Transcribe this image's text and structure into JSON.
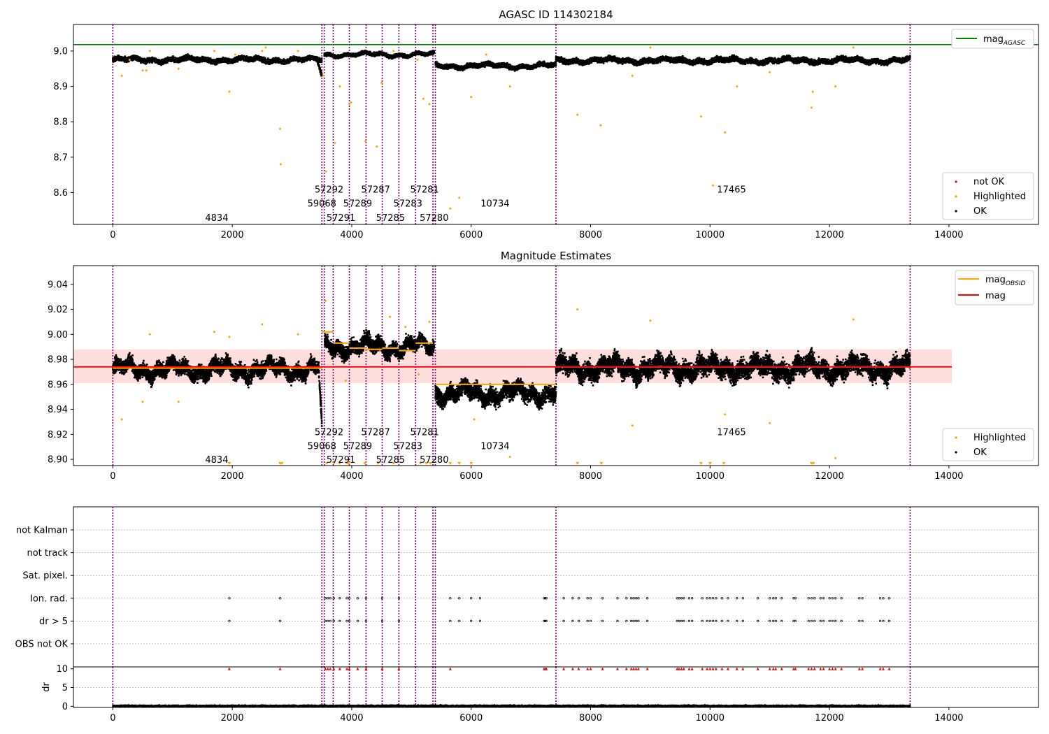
{
  "chart_data": [
    {
      "type": "scatter",
      "title": "AGASC ID 114302184",
      "xlim": [
        -660,
        15500
      ],
      "ylim": [
        8.51,
        9.075
      ],
      "x_ticks": [
        0,
        2000,
        4000,
        6000,
        8000,
        10000,
        12000,
        14000
      ],
      "y_ticks": [
        8.6,
        8.7,
        8.8,
        8.9,
        9.0
      ],
      "y_tick_labels": [
        "8.6",
        "8.7",
        "8.8",
        "8.9",
        "9.0"
      ],
      "grid": false,
      "legend_top": {
        "placement": "top-right",
        "entries": [
          {
            "name": "mag",
            "sub": "AGASC",
            "color": "#008000"
          }
        ]
      },
      "legend_bottom": {
        "placement": "bottom-right",
        "entries": [
          {
            "name": "not OK",
            "color": "#ff0000"
          },
          {
            "name": "Highlighted",
            "color": "#ffa500"
          },
          {
            "name": "OK",
            "color": "#000000"
          }
        ]
      },
      "reference_line": {
        "name": "mag AGASC",
        "y": 9.018,
        "color": "#008000"
      },
      "obsid_boundaries": [
        0,
        3500,
        3540,
        3690,
        3960,
        4240,
        4510,
        4790,
        5070,
        5360,
        5400,
        7420,
        13350
      ],
      "ok_segments": [
        {
          "x_start": 0,
          "x_end": 3500,
          "y": 8.975,
          "spread": 0.012
        },
        {
          "x_start": 3540,
          "x_end": 5380,
          "y": 8.99,
          "spread": 0.009
        },
        {
          "x_start": 5400,
          "x_end": 7420,
          "y": 8.958,
          "spread": 0.011
        },
        {
          "x_start": 7420,
          "x_end": 13350,
          "y": 8.973,
          "spread": 0.013
        }
      ],
      "dip": {
        "x_start": 3420,
        "x_end": 3500,
        "y_from": 8.975,
        "y_to": 8.93
      },
      "highlighted_points": [
        [
          150,
          8.93
        ],
        [
          280,
          8.975
        ],
        [
          500,
          8.945
        ],
        [
          560,
          8.945
        ],
        [
          620,
          9.0
        ],
        [
          1100,
          8.95
        ],
        [
          1700,
          9.0
        ],
        [
          1950,
          8.885
        ],
        [
          2050,
          8.99
        ],
        [
          2500,
          9.0
        ],
        [
          2560,
          9.01
        ],
        [
          2800,
          8.78
        ],
        [
          2810,
          8.68
        ],
        [
          3100,
          9.0
        ],
        [
          3530,
          8.93
        ],
        [
          3570,
          8.66
        ],
        [
          3720,
          8.74
        ],
        [
          3800,
          8.9
        ],
        [
          3960,
          8.85
        ],
        [
          3990,
          8.855
        ],
        [
          4230,
          8.745
        ],
        [
          4420,
          8.73
        ],
        [
          4500,
          8.91
        ],
        [
          4700,
          9.0
        ],
        [
          5100,
          8.975
        ],
        [
          5200,
          8.865
        ],
        [
          5300,
          8.85
        ],
        [
          5650,
          8.555
        ],
        [
          5800,
          8.585
        ],
        [
          6000,
          8.87
        ],
        [
          6250,
          8.99
        ],
        [
          6650,
          8.9
        ],
        [
          7780,
          8.82
        ],
        [
          8170,
          8.79
        ],
        [
          8700,
          8.93
        ],
        [
          9000,
          9.01
        ],
        [
          9850,
          8.815
        ],
        [
          10050,
          8.62
        ],
        [
          10250,
          8.77
        ],
        [
          10450,
          8.9
        ],
        [
          11000,
          8.94
        ],
        [
          11700,
          8.84
        ],
        [
          11720,
          8.885
        ],
        [
          12100,
          8.9
        ],
        [
          12400,
          9.01
        ]
      ],
      "obsid_labels": [
        {
          "text": "4834",
          "x": 1740,
          "y": 8.53
        },
        {
          "text": "57292",
          "x": 3620,
          "y": 8.61
        },
        {
          "text": "59068",
          "x": 3500,
          "y": 8.57
        },
        {
          "text": "57291",
          "x": 3820,
          "y": 8.53
        },
        {
          "text": "57287",
          "x": 4400,
          "y": 8.61
        },
        {
          "text": "57289",
          "x": 4100,
          "y": 8.57
        },
        {
          "text": "57285",
          "x": 4650,
          "y": 8.53
        },
        {
          "text": "57283",
          "x": 4940,
          "y": 8.57
        },
        {
          "text": "57281",
          "x": 5220,
          "y": 8.61
        },
        {
          "text": "57280",
          "x": 5380,
          "y": 8.53
        },
        {
          "text": "10734",
          "x": 6400,
          "y": 8.57
        },
        {
          "text": "17465",
          "x": 10360,
          "y": 8.61
        }
      ]
    },
    {
      "type": "scatter",
      "title": "Magnitude Estimates",
      "xlim": [
        -660,
        15500
      ],
      "ylim": [
        8.895,
        9.055
      ],
      "x_ticks": [
        0,
        2000,
        4000,
        6000,
        8000,
        10000,
        12000,
        14000
      ],
      "y_ticks": [
        8.9,
        8.92,
        8.94,
        8.96,
        8.98,
        9.0,
        9.02,
        9.04
      ],
      "y_tick_labels": [
        "8.90",
        "8.92",
        "8.94",
        "8.96",
        "8.98",
        "9.00",
        "9.02",
        "9.04"
      ],
      "grid": false,
      "legend_top": {
        "placement": "top-right",
        "entries": [
          {
            "name": "mag",
            "sub": "OBSID",
            "color": "#ffa500"
          },
          {
            "name": "mag",
            "sub": "",
            "color": "#ff0000"
          }
        ]
      },
      "legend_bottom": {
        "placement": "bottom-right",
        "entries": [
          {
            "name": "Highlighted",
            "color": "#ffa500"
          },
          {
            "name": "OK",
            "color": "#000000"
          }
        ]
      },
      "mean_line": {
        "y": 8.974,
        "x_end": 14050,
        "band": [
          8.961,
          8.988
        ],
        "color": "#ff0000"
      },
      "obsid_mag": [
        {
          "x_start": 0,
          "x_end": 3500,
          "y": 8.973
        },
        {
          "x_start": 3500,
          "x_end": 3690,
          "y": 9.002
        },
        {
          "x_start": 3690,
          "x_end": 3960,
          "y": 8.993
        },
        {
          "x_start": 3960,
          "x_end": 4240,
          "y": 8.989
        },
        {
          "x_start": 4240,
          "x_end": 4510,
          "y": 8.988
        },
        {
          "x_start": 4510,
          "x_end": 4790,
          "y": 8.989
        },
        {
          "x_start": 4790,
          "x_end": 5070,
          "y": 8.987
        },
        {
          "x_start": 5070,
          "x_end": 5360,
          "y": 8.993
        },
        {
          "x_start": 5400,
          "x_end": 7420,
          "y": 8.96
        },
        {
          "x_start": 7420,
          "x_end": 13350,
          "y": 8.974
        }
      ],
      "obsid_boundaries": [
        0,
        3500,
        3540,
        3690,
        3960,
        4240,
        4510,
        4790,
        5070,
        5360,
        5400,
        7420,
        13350
      ],
      "ok_segments": [
        {
          "x_start": 0,
          "x_end": 3450,
          "y": 8.972,
          "spread": 0.007
        },
        {
          "x_start": 3550,
          "x_end": 5380,
          "y": 8.99,
          "spread": 0.007
        },
        {
          "x_start": 5400,
          "x_end": 7420,
          "y": 8.953,
          "spread": 0.008
        },
        {
          "x_start": 7420,
          "x_end": 13350,
          "y": 8.973,
          "spread": 0.009
        }
      ],
      "highlighted_points": [
        [
          150,
          8.932
        ],
        [
          500,
          8.946
        ],
        [
          620,
          9.0
        ],
        [
          1100,
          8.946
        ],
        [
          1700,
          9.002
        ],
        [
          1950,
          8.998
        ],
        [
          2500,
          9.008
        ],
        [
          3100,
          9.0
        ],
        [
          3560,
          9.027
        ],
        [
          3900,
          8.963
        ],
        [
          4640,
          9.014
        ],
        [
          4900,
          9.006
        ],
        [
          5120,
          8.968
        ],
        [
          5300,
          9.01
        ],
        [
          6050,
          8.932
        ],
        [
          6650,
          8.902
        ],
        [
          7780,
          9.02
        ],
        [
          8700,
          8.927
        ],
        [
          9000,
          9.011
        ],
        [
          10250,
          8.936
        ],
        [
          11000,
          8.929
        ],
        [
          12100,
          8.901
        ],
        [
          12400,
          9.012
        ]
      ],
      "clipped_points_x": [
        1950,
        2800,
        2830,
        3580,
        3700,
        3800,
        3920,
        3950,
        4220,
        4440,
        4700,
        5150,
        5250,
        5320,
        5650,
        5800,
        6000,
        7780,
        8180,
        9850,
        10000,
        10230,
        11700,
        11730
      ],
      "obsid_labels": [
        {
          "text": "4834",
          "x": 1740,
          "y": 8.9
        },
        {
          "text": "57292",
          "x": 3620,
          "y": 8.922
        },
        {
          "text": "59068",
          "x": 3500,
          "y": 8.911
        },
        {
          "text": "57291",
          "x": 3820,
          "y": 8.9
        },
        {
          "text": "57287",
          "x": 4400,
          "y": 8.922
        },
        {
          "text": "57289",
          "x": 4100,
          "y": 8.911
        },
        {
          "text": "57285",
          "x": 4650,
          "y": 8.9
        },
        {
          "text": "57283",
          "x": 4940,
          "y": 8.911
        },
        {
          "text": "57281",
          "x": 5220,
          "y": 8.922
        },
        {
          "text": "57280",
          "x": 5380,
          "y": 8.9
        },
        {
          "text": "10734",
          "x": 6400,
          "y": 8.911
        },
        {
          "text": "17465",
          "x": 10360,
          "y": 8.922
        }
      ]
    },
    {
      "type": "scatter",
      "title": "",
      "xlim": [
        -660,
        15500
      ],
      "y_categories": [
        "not Kalman",
        "not track",
        "Sat. pixel.",
        "Ion. rad.",
        "dr > 5",
        "OBS not OK"
      ],
      "flags": {
        "Ion. rad.": [
          1950,
          2800,
          3560,
          3600,
          3640,
          3700,
          3800,
          3920,
          3960,
          4100,
          4240,
          4510,
          4790,
          5650,
          5800,
          6000,
          6150,
          7220,
          7240,
          7260,
          7550,
          7700,
          7800,
          7950,
          8000,
          8200,
          8450,
          8600,
          8680,
          8720,
          8760,
          8800,
          8950,
          9450,
          9480,
          9520,
          9560,
          9650,
          9700,
          9870,
          9950,
          10000,
          10050,
          10100,
          10200,
          10300,
          10450,
          10550,
          10800,
          11000,
          11060,
          11100,
          11200,
          11400,
          11430,
          11650,
          11700,
          11750,
          11850,
          11900,
          12000,
          12050,
          12100,
          12200,
          12500,
          12550,
          12850,
          12900,
          13000
        ],
        "dr > 5": [
          1950,
          2800,
          3560,
          3600,
          3640,
          3700,
          3800,
          3920,
          3960,
          4100,
          4240,
          4510,
          4790,
          5650,
          5800,
          6000,
          6150,
          7220,
          7240,
          7260,
          7550,
          7700,
          7800,
          7950,
          8000,
          8200,
          8450,
          8600,
          8680,
          8720,
          8760,
          8800,
          8950,
          9450,
          9480,
          9520,
          9560,
          9650,
          9700,
          9870,
          9950,
          10000,
          10050,
          10100,
          10200,
          10300,
          10450,
          10550,
          10800,
          11000,
          11060,
          11100,
          11200,
          11400,
          11430,
          11650,
          11700,
          11750,
          11850,
          11900,
          12000,
          12050,
          12100,
          12200,
          12500,
          12550,
          12850,
          12900,
          13000
        ]
      },
      "obsid_boundaries": [
        0,
        3500,
        3540,
        3690,
        3960,
        4240,
        4510,
        4790,
        5070,
        5360,
        5400,
        7420,
        13350
      ]
    },
    {
      "type": "scatter",
      "title": "",
      "xlim": [
        -660,
        15500
      ],
      "ylim": [
        -0.3,
        10.5
      ],
      "x_ticks": [
        0,
        2000,
        4000,
        6000,
        8000,
        10000,
        12000,
        14000
      ],
      "y_ticks": [
        0,
        5,
        10
      ],
      "ylabel": "dr",
      "not_ok_points_x": [
        1950,
        2800,
        3560,
        3600,
        3640,
        3700,
        3800,
        3920,
        3960,
        4100,
        4240,
        4510,
        4790,
        5650,
        7220,
        7240,
        7260,
        7550,
        7700,
        7800,
        7950,
        8000,
        8200,
        8450,
        8600,
        8680,
        8720,
        8760,
        8800,
        8950,
        9450,
        9480,
        9520,
        9560,
        9650,
        9700,
        9870,
        9950,
        10000,
        10050,
        10100,
        10200,
        10300,
        10450,
        10550,
        10800,
        11000,
        11060,
        11100,
        11200,
        11400,
        11430,
        11650,
        11700,
        11750,
        11850,
        11900,
        12000,
        12050,
        12100,
        12200,
        12500,
        12550,
        12850,
        12900,
        13000
      ],
      "obsid_boundaries": [
        0,
        3500,
        3540,
        3690,
        3960,
        4240,
        4510,
        4790,
        5070,
        5360,
        5400,
        7420,
        13350
      ]
    }
  ]
}
